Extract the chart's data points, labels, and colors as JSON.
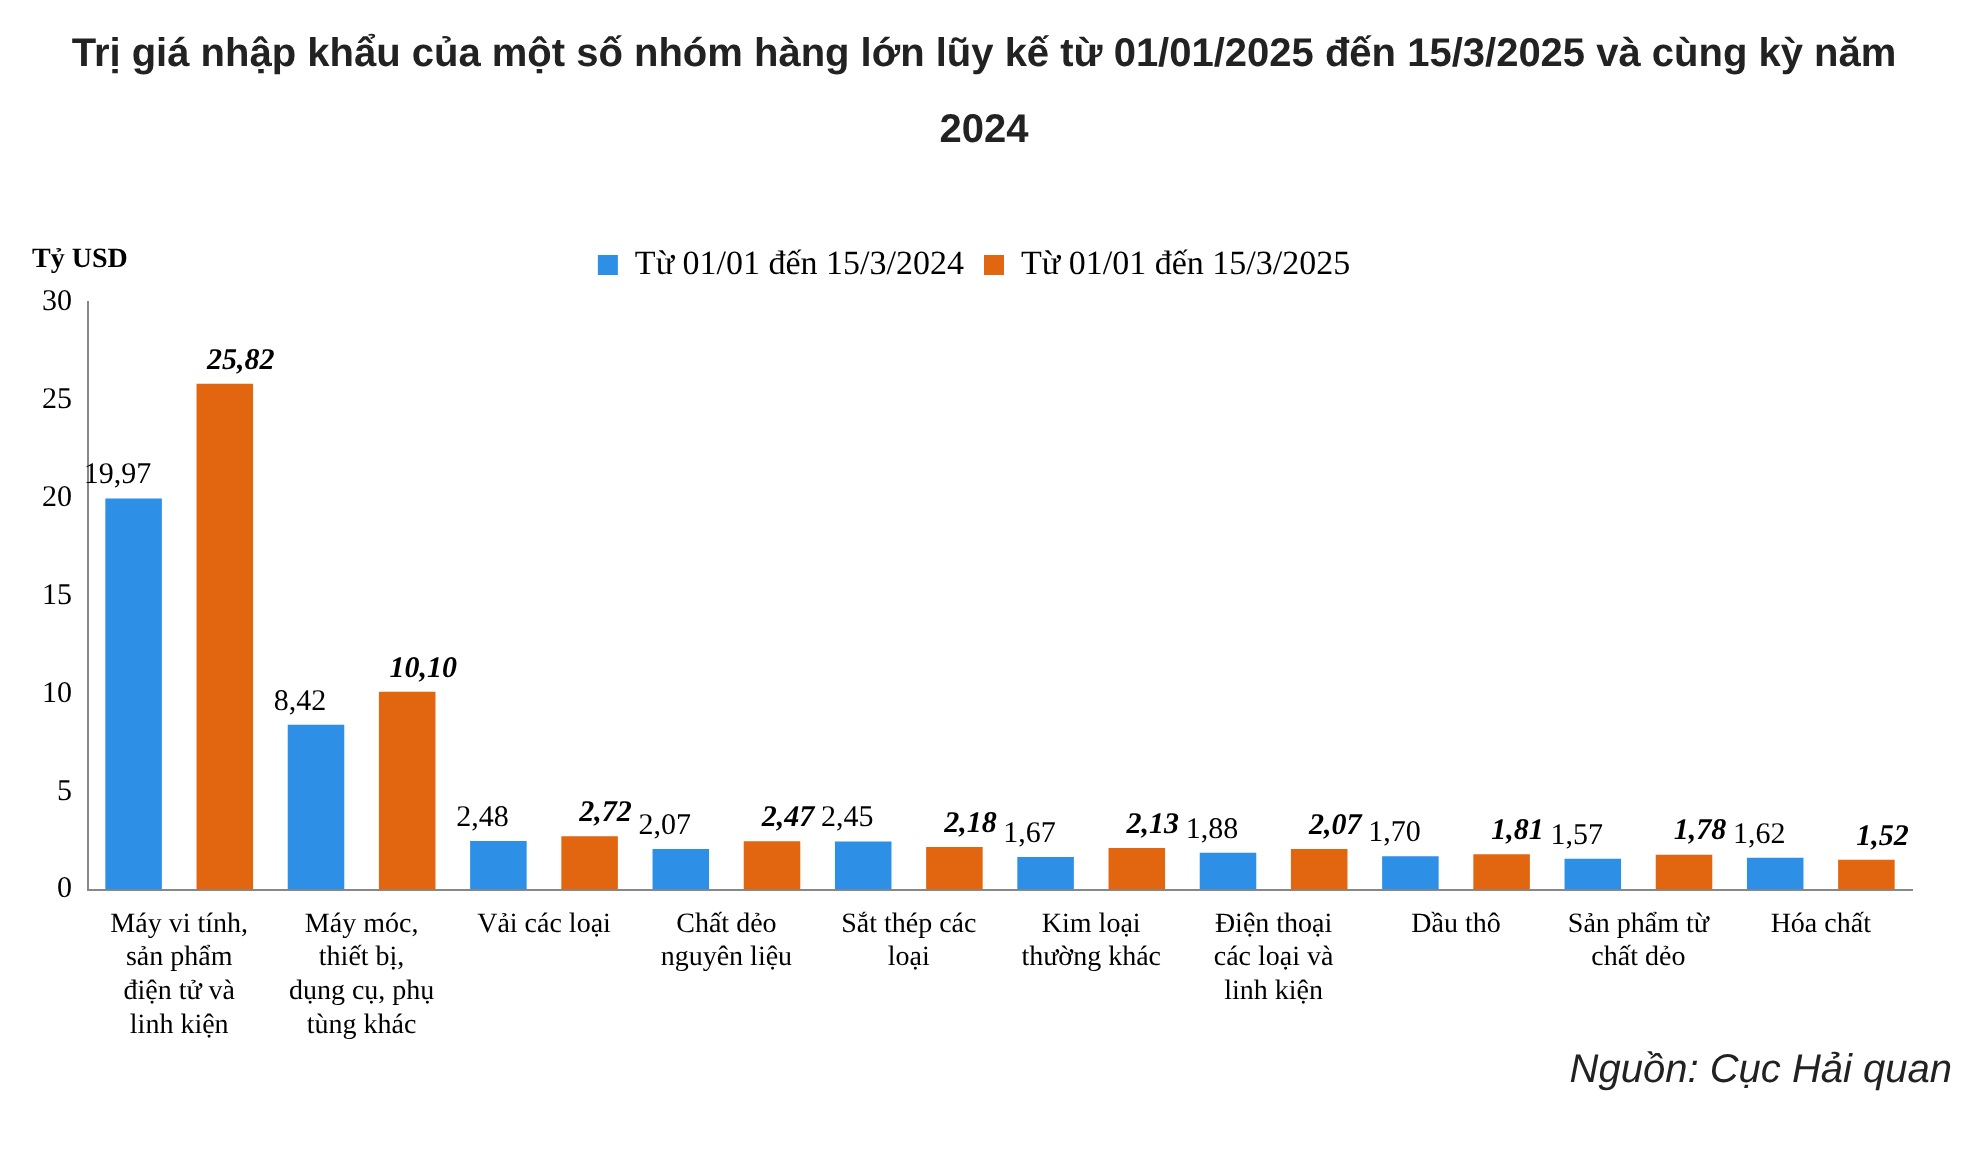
{
  "chart_data": {
    "type": "bar",
    "title": "Trị giá nhập khẩu của một số nhóm hàng lớn lũy kế từ 01/01/2025 đến 15/3/2025 và cùng kỳ năm 2024",
    "ylabel": "Tỷ USD",
    "categories": [
      "Máy vi tính, sản phẩm điện tử và linh kiện",
      "Máy móc, thiết bị, dụng cụ, phụ tùng khác",
      "Vải các loại",
      "Chất dẻo nguyên liệu",
      "Sắt thép các loại",
      "Kim loại thường khác",
      "Điện thoại các loại và linh kiện",
      "Dầu thô",
      "Sản phẩm từ chất dẻo",
      "Hóa chất"
    ],
    "series": [
      {
        "name": "Từ 01/01 đến 15/3/2024",
        "color": "#2e8fe6",
        "values": [
          19.97,
          8.42,
          2.48,
          2.07,
          2.45,
          1.67,
          1.88,
          1.7,
          1.57,
          1.62
        ],
        "value_labels": [
          "19,97",
          "8,42",
          "2,48",
          "2,07",
          "2,45",
          "1,67",
          "1,88",
          "1,70",
          "1,57",
          "1,62"
        ]
      },
      {
        "name": "Từ 01/01 đến 15/3/2025",
        "color": "#e2660f",
        "values": [
          25.82,
          10.1,
          2.72,
          2.47,
          2.18,
          2.13,
          2.07,
          1.81,
          1.78,
          1.52
        ],
        "value_labels": [
          "25,82",
          "10,10",
          "2,72",
          "2,47",
          "2,18",
          "2,13",
          "2,07",
          "1,81",
          "1,78",
          "1,52"
        ]
      }
    ],
    "ylim": [
      0,
      30
    ],
    "yticks": [
      0,
      5,
      10,
      15,
      20,
      25,
      30
    ],
    "grid": false,
    "legend": "top",
    "annotations": [
      "Nguồn: Cục Hải quan"
    ]
  }
}
